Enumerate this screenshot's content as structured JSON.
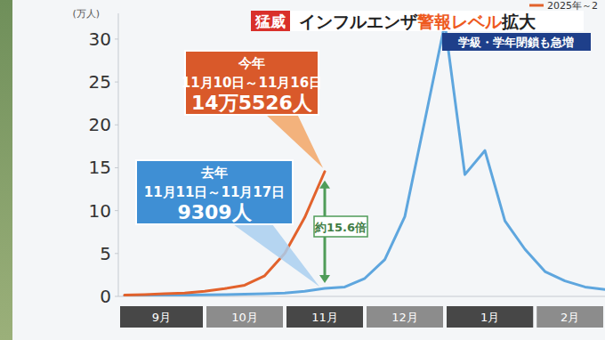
{
  "chart_data": {
    "type": "line",
    "badge": "猛威",
    "title_parts": [
      {
        "text": "インフルエンザ"
      },
      {
        "text": "警報レベル",
        "color": "#ee5a1e"
      },
      {
        "text": "拡大"
      }
    ],
    "subtitle": "学級・学年閉鎖も急増",
    "y_label": "(万人)",
    "categories": [
      null,
      null,
      "9月",
      null,
      null,
      null,
      "10月",
      null,
      null,
      null,
      "11月",
      null,
      null,
      null,
      "12月",
      null,
      null,
      null,
      "1月",
      null,
      null,
      null,
      null,
      "2月",
      null
    ],
    "series": [
      {
        "name": "2025年～2",
        "color": "#e2622c",
        "values": [
          0.15,
          0.2,
          0.3,
          0.4,
          0.6,
          0.9,
          1.3,
          2.4,
          5.0,
          9.2,
          14.5526,
          null,
          null,
          null,
          null,
          null,
          null,
          null,
          null,
          null,
          null,
          null,
          null,
          null,
          null
        ]
      },
      {
        "color": "#5ea6de",
        "values": [
          0.1,
          0.1,
          0.12,
          0.15,
          0.18,
          0.2,
          0.25,
          0.3,
          0.4,
          0.6,
          0.9309,
          1.1,
          2.1,
          4.3,
          9.3,
          20.5,
          31.8,
          14.2,
          17.0,
          8.8,
          5.5,
          2.9,
          1.8,
          1.1,
          0.8
        ]
      }
    ],
    "ylim": [
      0,
      33
    ],
    "yticks": [
      0,
      5,
      10,
      15,
      20,
      25,
      30
    ],
    "grid": false,
    "legend": "top-right",
    "annotations": [
      {
        "text": [
          "今年",
          "11月10日～11月16日",
          "14万5526人"
        ],
        "color": "#d9592a"
      },
      {
        "text": [
          "去年",
          "11月11日～11月17日",
          "9309人"
        ],
        "color": "#3f8fd4"
      },
      {
        "text": "約15.6倍",
        "color": "#4f9c58"
      }
    ]
  }
}
